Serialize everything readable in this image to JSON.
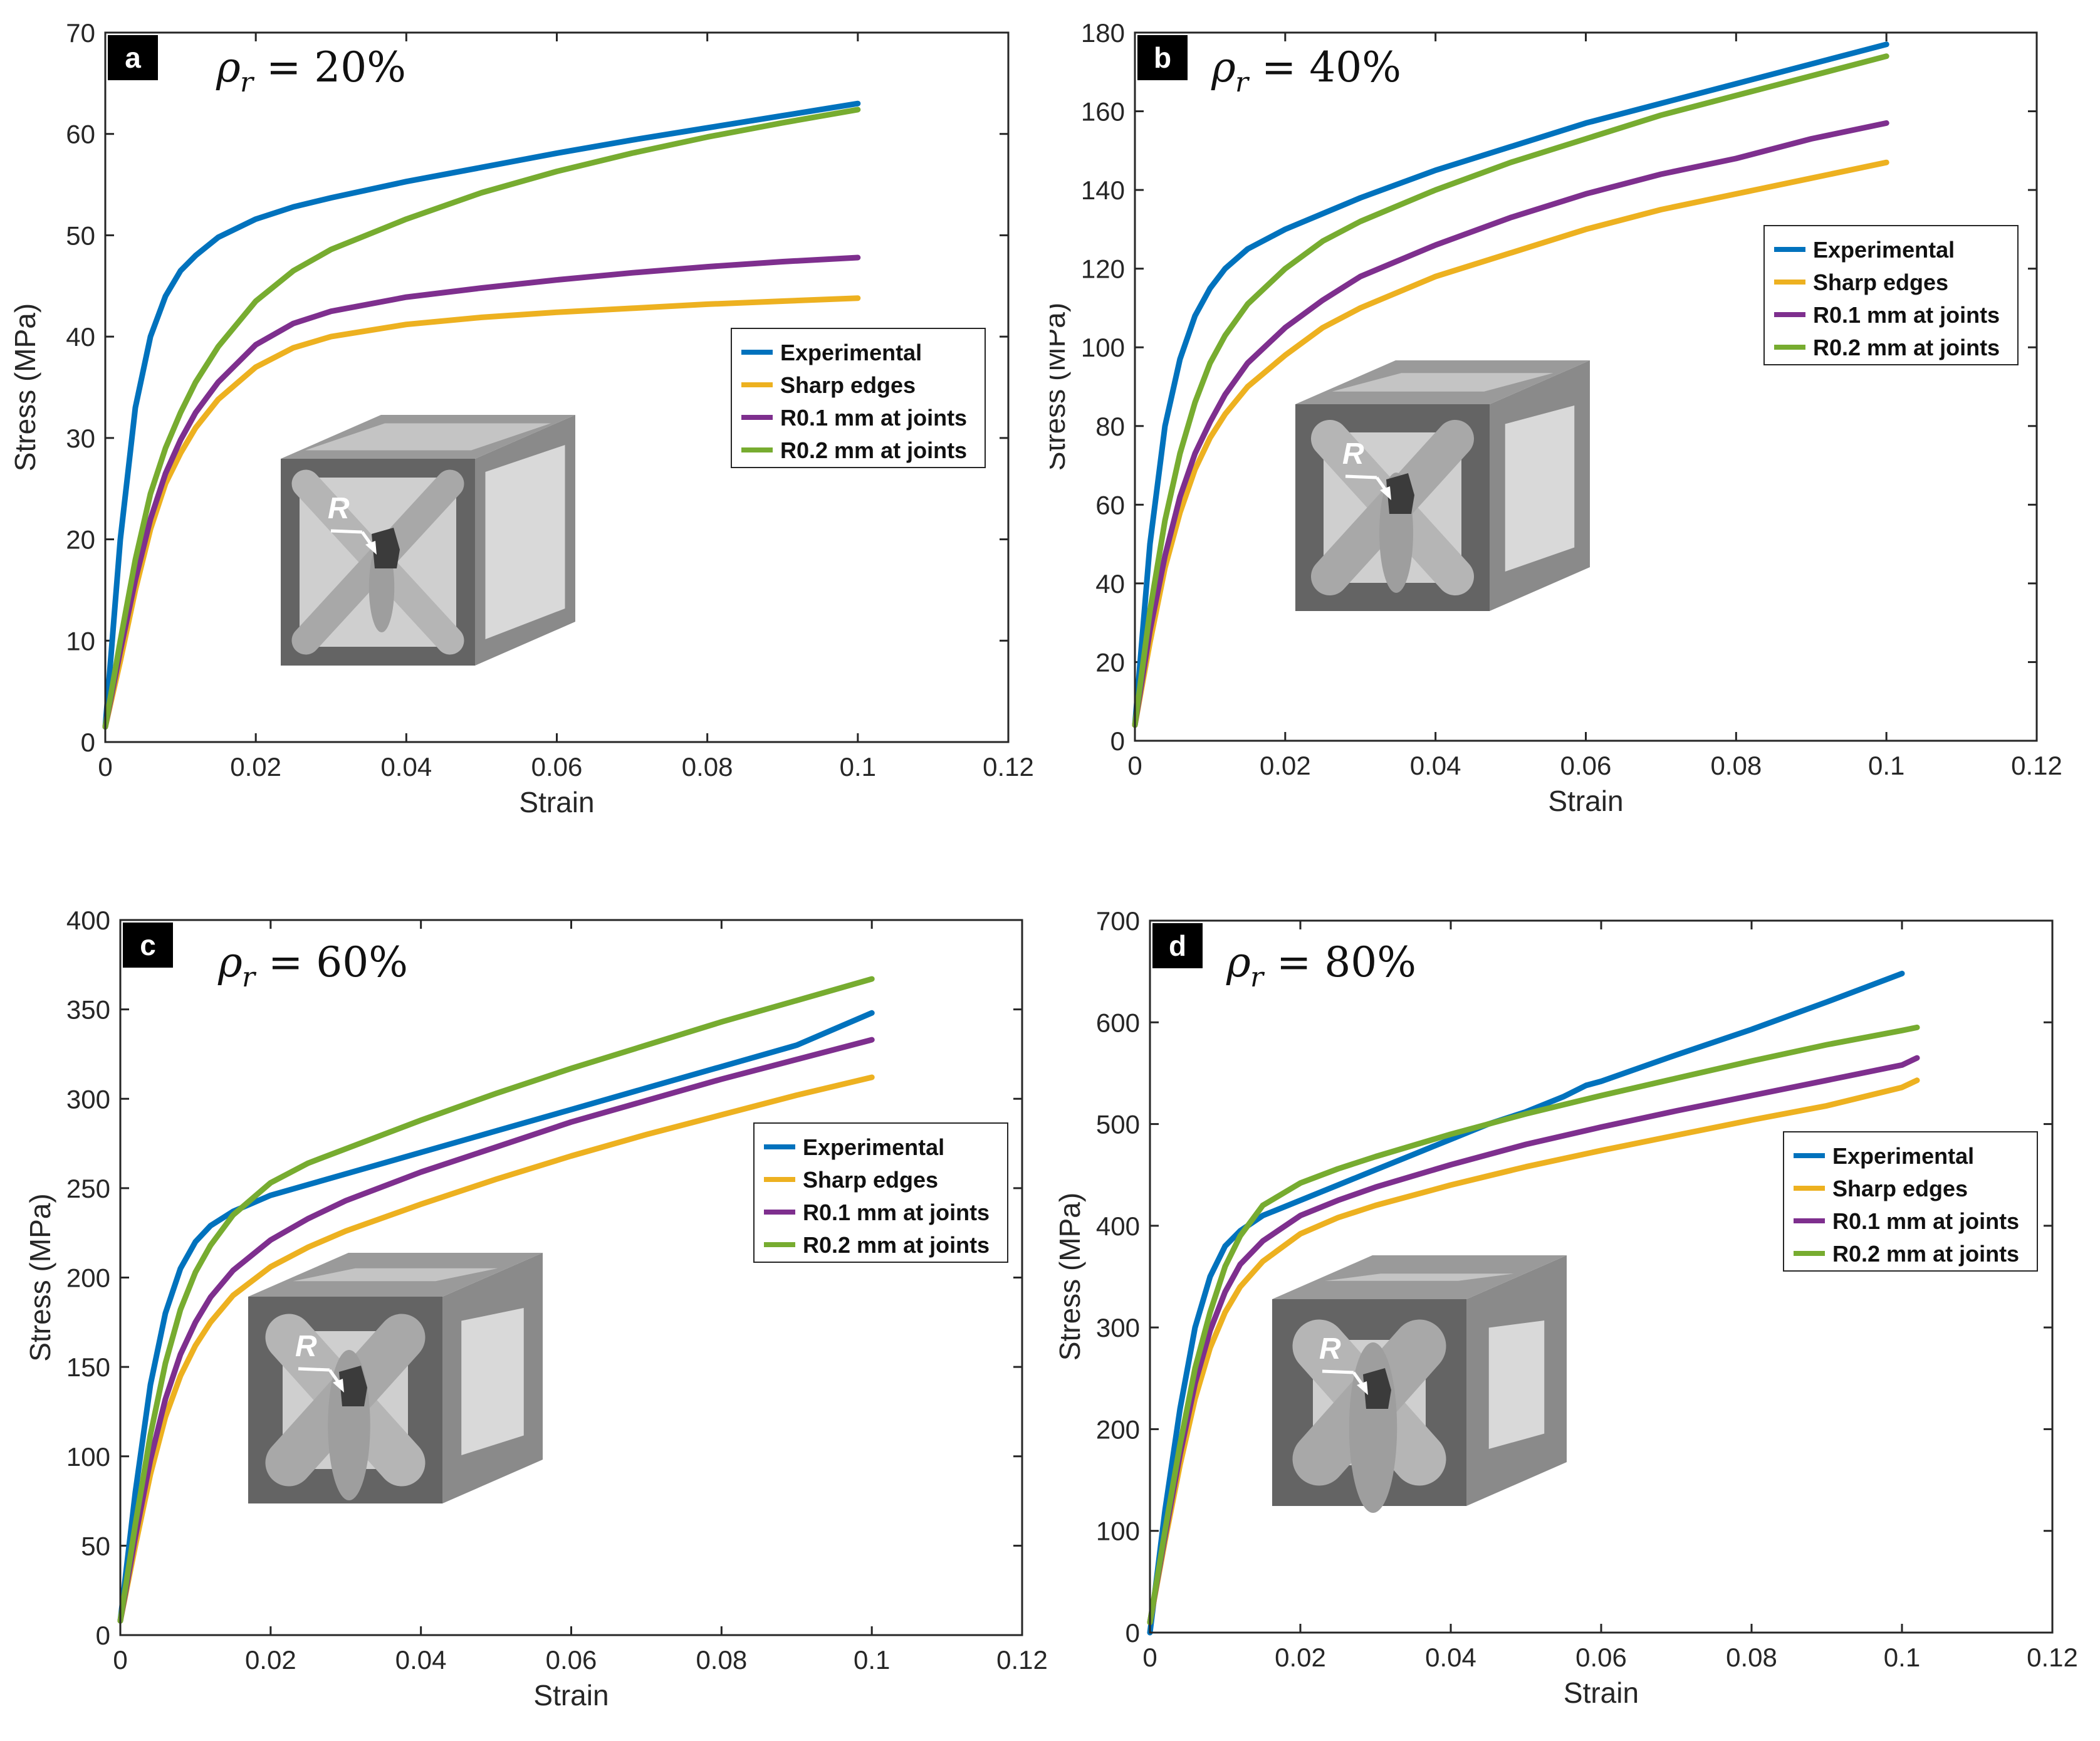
{
  "figure": {
    "x_label": "Strain",
    "y_label": "Stress (MPa)",
    "inset_label": "R"
  },
  "legend": [
    "Experimental",
    "Sharp edges",
    "R0.1 mm at joints",
    "R0.2 mm at joints"
  ],
  "colors": {
    "Experimental": "#0072BD",
    "Sharp edges": "#EDB120",
    "R0.1 mm at joints": "#7E2F8E",
    "R0.2 mm at joints": "#77AC30"
  },
  "chart_data": [
    {
      "panel": "a",
      "type": "line",
      "title": "ρr = 20%",
      "rho_value": "= 20%",
      "xlabel": "Strain",
      "ylabel": "Stress (MPa)",
      "xlim": [
        0,
        0.12
      ],
      "ylim": [
        0,
        70
      ],
      "xticks": [
        0,
        0.02,
        0.04,
        0.06,
        0.08,
        0.1,
        0.12
      ],
      "xtick_labels": [
        "0",
        "0.02",
        "0.04",
        "0.06",
        "0.08",
        "0.1",
        "0.12"
      ],
      "yticks": [
        0,
        10,
        20,
        30,
        40,
        50,
        60,
        70
      ],
      "ytick_labels": [
        "0",
        "10",
        "20",
        "30",
        "40",
        "50",
        "60",
        "70"
      ],
      "legend_position": "center-right",
      "series": [
        {
          "name": "Experimental",
          "x": [
            0,
            0.002,
            0.004,
            0.006,
            0.008,
            0.01,
            0.012,
            0.015,
            0.02,
            0.025,
            0.03,
            0.04,
            0.05,
            0.06,
            0.07,
            0.08,
            0.09,
            0.1
          ],
          "y": [
            1.5,
            20,
            33,
            40,
            44,
            46.5,
            48,
            49.8,
            51.6,
            52.8,
            53.7,
            55.3,
            56.7,
            58.1,
            59.4,
            60.6,
            61.8,
            63
          ]
        },
        {
          "name": "Sharp edges",
          "x": [
            0,
            0.002,
            0.004,
            0.006,
            0.008,
            0.01,
            0.012,
            0.015,
            0.02,
            0.025,
            0.03,
            0.04,
            0.05,
            0.06,
            0.07,
            0.08,
            0.09,
            0.1
          ],
          "y": [
            1.5,
            8,
            15,
            21,
            25.5,
            28.5,
            31,
            33.8,
            37,
            38.9,
            40,
            41.2,
            41.9,
            42.4,
            42.8,
            43.2,
            43.5,
            43.8
          ]
        },
        {
          "name": "R0.1 mm at joints",
          "x": [
            0,
            0.002,
            0.004,
            0.006,
            0.008,
            0.01,
            0.012,
            0.015,
            0.02,
            0.025,
            0.03,
            0.04,
            0.05,
            0.06,
            0.07,
            0.08,
            0.09,
            0.1
          ],
          "y": [
            1.5,
            9,
            16,
            22,
            26.5,
            29.8,
            32.5,
            35.5,
            39.2,
            41.3,
            42.5,
            43.9,
            44.8,
            45.6,
            46.3,
            46.9,
            47.4,
            47.8
          ]
        },
        {
          "name": "R0.2 mm at joints",
          "x": [
            0,
            0.002,
            0.004,
            0.006,
            0.008,
            0.01,
            0.012,
            0.015,
            0.02,
            0.025,
            0.03,
            0.04,
            0.05,
            0.06,
            0.07,
            0.08,
            0.09,
            0.1
          ],
          "y": [
            1.5,
            10,
            18,
            24.5,
            29,
            32.5,
            35.5,
            39,
            43.5,
            46.5,
            48.6,
            51.6,
            54.2,
            56.3,
            58.1,
            59.7,
            61.1,
            62.4
          ]
        }
      ]
    },
    {
      "panel": "b",
      "type": "line",
      "title": "ρr = 40%",
      "rho_value": "= 40%",
      "xlabel": "Strain",
      "ylabel": "Stress (MPa)",
      "xlim": [
        0,
        0.12
      ],
      "ylim": [
        0,
        180
      ],
      "xticks": [
        0,
        0.02,
        0.04,
        0.06,
        0.08,
        0.1,
        0.12
      ],
      "xtick_labels": [
        "0",
        "0.02",
        "0.04",
        "0.06",
        "0.08",
        "0.1",
        "0.12"
      ],
      "yticks": [
        0,
        20,
        40,
        60,
        80,
        100,
        120,
        140,
        160,
        180
      ],
      "ytick_labels": [
        "0",
        "20",
        "40",
        "60",
        "80",
        "100",
        "120",
        "140",
        "160",
        "180"
      ],
      "legend_position": "upper-right",
      "series": [
        {
          "name": "Experimental",
          "x": [
            0,
            0.002,
            0.004,
            0.006,
            0.008,
            0.01,
            0.012,
            0.015,
            0.02,
            0.025,
            0.03,
            0.04,
            0.05,
            0.06,
            0.07,
            0.08,
            0.09,
            0.1
          ],
          "y": [
            4,
            50,
            80,
            97,
            108,
            115,
            120,
            125,
            130,
            134,
            138,
            145,
            151,
            157,
            162,
            167,
            172,
            177
          ]
        },
        {
          "name": "Sharp edges",
          "x": [
            0,
            0.002,
            0.004,
            0.006,
            0.008,
            0.01,
            0.012,
            0.015,
            0.02,
            0.025,
            0.03,
            0.04,
            0.05,
            0.06,
            0.07,
            0.08,
            0.09,
            0.1
          ],
          "y": [
            4,
            25,
            44,
            58,
            69,
            77,
            83,
            90,
            98,
            105,
            110,
            118,
            124,
            130,
            135,
            139,
            143,
            147
          ]
        },
        {
          "name": "R0.1 mm at joints",
          "x": [
            0,
            0.002,
            0.004,
            0.006,
            0.008,
            0.01,
            0.012,
            0.015,
            0.02,
            0.025,
            0.03,
            0.04,
            0.05,
            0.06,
            0.07,
            0.08,
            0.09,
            0.1
          ],
          "y": [
            4,
            28,
            47,
            62,
            73,
            81,
            88,
            96,
            105,
            112,
            118,
            126,
            133,
            139,
            144,
            148,
            153,
            157
          ]
        },
        {
          "name": "R0.2 mm at joints",
          "x": [
            0,
            0.002,
            0.004,
            0.006,
            0.008,
            0.01,
            0.012,
            0.015,
            0.02,
            0.025,
            0.03,
            0.04,
            0.05,
            0.06,
            0.07,
            0.08,
            0.09,
            0.1
          ],
          "y": [
            4,
            33,
            56,
            73,
            86,
            96,
            103,
            111,
            120,
            127,
            132,
            140,
            147,
            153,
            159,
            164,
            169,
            174
          ]
        }
      ]
    },
    {
      "panel": "c",
      "type": "line",
      "title": "ρr = 60%",
      "rho_value": "= 60%",
      "xlabel": "Strain",
      "ylabel": "Stress (MPa)",
      "xlim": [
        0,
        0.12
      ],
      "ylim": [
        0,
        400
      ],
      "xticks": [
        0,
        0.02,
        0.04,
        0.06,
        0.08,
        0.1,
        0.12
      ],
      "xtick_labels": [
        "0",
        "0.02",
        "0.04",
        "0.06",
        "0.08",
        "0.1",
        "0.12"
      ],
      "yticks": [
        0,
        50,
        100,
        150,
        200,
        250,
        300,
        350,
        400
      ],
      "ytick_labels": [
        "0",
        "50",
        "100",
        "150",
        "200",
        "250",
        "300",
        "350",
        "400"
      ],
      "legend_position": "center-right",
      "series": [
        {
          "name": "Experimental",
          "x": [
            0,
            0.002,
            0.004,
            0.006,
            0.008,
            0.01,
            0.012,
            0.015,
            0.02,
            0.025,
            0.03,
            0.04,
            0.05,
            0.06,
            0.07,
            0.08,
            0.09,
            0.1
          ],
          "y": [
            8,
            80,
            140,
            180,
            205,
            220,
            229,
            237,
            246,
            252,
            258,
            270,
            282,
            294,
            306,
            318,
            330,
            348
          ]
        },
        {
          "name": "Sharp edges",
          "x": [
            0,
            0.002,
            0.004,
            0.006,
            0.008,
            0.01,
            0.012,
            0.015,
            0.02,
            0.025,
            0.03,
            0.04,
            0.05,
            0.06,
            0.07,
            0.08,
            0.09,
            0.1
          ],
          "y": [
            8,
            50,
            90,
            122,
            145,
            162,
            175,
            190,
            206,
            217,
            226,
            241,
            255,
            268,
            280,
            291,
            302,
            312
          ]
        },
        {
          "name": "R0.1 mm at joints",
          "x": [
            0,
            0.002,
            0.004,
            0.006,
            0.008,
            0.01,
            0.012,
            0.015,
            0.02,
            0.025,
            0.03,
            0.04,
            0.05,
            0.06,
            0.07,
            0.08,
            0.09,
            0.1
          ],
          "y": [
            8,
            55,
            98,
            132,
            157,
            175,
            189,
            204,
            221,
            233,
            243,
            259,
            273,
            287,
            299,
            311,
            322,
            333
          ]
        },
        {
          "name": "R0.2 mm at joints",
          "x": [
            0,
            0.002,
            0.004,
            0.006,
            0.008,
            0.01,
            0.012,
            0.015,
            0.02,
            0.025,
            0.03,
            0.04,
            0.05,
            0.06,
            0.07,
            0.08,
            0.09,
            0.1
          ],
          "y": [
            8,
            62,
            112,
            152,
            182,
            203,
            218,
            235,
            253,
            264,
            272,
            288,
            303,
            317,
            330,
            343,
            355,
            367
          ]
        }
      ]
    },
    {
      "panel": "d",
      "type": "line",
      "title": "ρr = 80%",
      "rho_value": "= 80%",
      "xlabel": "Strain",
      "ylabel": "Stress (MPa)",
      "xlim": [
        0,
        0.12
      ],
      "ylim": [
        0,
        700
      ],
      "xticks": [
        0,
        0.02,
        0.04,
        0.06,
        0.08,
        0.1,
        0.12
      ],
      "xtick_labels": [
        "0",
        "0.02",
        "0.04",
        "0.06",
        "0.08",
        "0.1",
        "0.12"
      ],
      "yticks": [
        0,
        100,
        200,
        300,
        400,
        500,
        600,
        700
      ],
      "ytick_labels": [
        "0",
        "100",
        "200",
        "300",
        "400",
        "500",
        "600",
        "700"
      ],
      "legend_position": "center-right",
      "series": [
        {
          "name": "Experimental",
          "x": [
            0,
            0.002,
            0.004,
            0.006,
            0.008,
            0.01,
            0.012,
            0.015,
            0.02,
            0.025,
            0.03,
            0.035,
            0.04,
            0.045,
            0.05,
            0.055,
            0.058,
            0.06,
            0.07,
            0.08,
            0.09,
            0.1
          ],
          "y": [
            0,
            120,
            220,
            300,
            350,
            380,
            395,
            410,
            425,
            440,
            455,
            470,
            485,
            500,
            512,
            527,
            538,
            542,
            568,
            593,
            620,
            648
          ]
        },
        {
          "name": "Sharp edges",
          "x": [
            0,
            0.002,
            0.004,
            0.006,
            0.008,
            0.01,
            0.012,
            0.015,
            0.02,
            0.025,
            0.03,
            0.04,
            0.05,
            0.06,
            0.07,
            0.08,
            0.09,
            0.1,
            0.102
          ],
          "y": [
            10,
            90,
            165,
            230,
            280,
            315,
            340,
            365,
            392,
            408,
            420,
            440,
            458,
            474,
            489,
            504,
            518,
            536,
            543
          ]
        },
        {
          "name": "R0.1 mm at joints",
          "x": [
            0,
            0.002,
            0.004,
            0.006,
            0.008,
            0.01,
            0.012,
            0.015,
            0.02,
            0.025,
            0.03,
            0.04,
            0.05,
            0.06,
            0.07,
            0.08,
            0.09,
            0.1,
            0.102
          ],
          "y": [
            10,
            95,
            175,
            245,
            297,
            335,
            362,
            385,
            410,
            425,
            438,
            460,
            480,
            497,
            513,
            528,
            543,
            558,
            565
          ]
        },
        {
          "name": "R0.2 mm at joints",
          "x": [
            0,
            0.002,
            0.004,
            0.006,
            0.008,
            0.01,
            0.012,
            0.015,
            0.02,
            0.025,
            0.03,
            0.04,
            0.05,
            0.06,
            0.07,
            0.08,
            0.09,
            0.1,
            0.102
          ],
          "y": [
            10,
            100,
            185,
            260,
            315,
            360,
            390,
            420,
            442,
            456,
            468,
            490,
            510,
            528,
            545,
            562,
            578,
            592,
            595
          ]
        }
      ]
    }
  ]
}
